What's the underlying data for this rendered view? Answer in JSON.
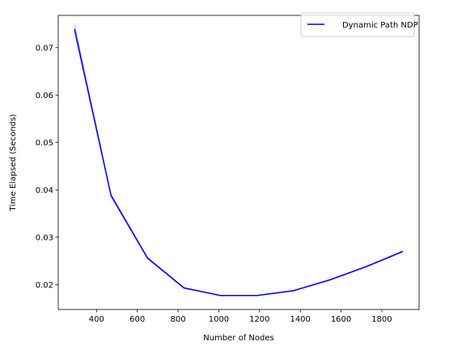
{
  "chart_data": {
    "type": "line",
    "title": "",
    "xlabel": "Number of Nodes",
    "ylabel": "Time Elapsed (Seconds)",
    "xlim": [
      212,
      1983
    ],
    "ylim": [
      0.01475,
      0.0768
    ],
    "xticks": [
      400,
      600,
      800,
      1000,
      1200,
      1400,
      1600,
      1800
    ],
    "yticks": [
      0.02,
      0.03,
      0.04,
      0.05,
      0.06,
      0.07
    ],
    "xtick_labels": [
      "400",
      "600",
      "800",
      "1000",
      "1200",
      "1400",
      "1600",
      "1800"
    ],
    "ytick_labels": [
      "0.02",
      "0.03",
      "0.04",
      "0.05",
      "0.06",
      "0.07"
    ],
    "grid": false,
    "legend_position": "top-right",
    "series": [
      {
        "name": "Dynamic Path NDP",
        "color": "#0000ff",
        "band_color": "#9999ff",
        "x": [
          292,
          471,
          650,
          829,
          1008,
          1187,
          1366,
          1545,
          1724,
          1903
        ],
        "y": [
          0.0739,
          0.0388,
          0.0256,
          0.0193,
          0.0177,
          0.0177,
          0.0187,
          0.021,
          0.0238,
          0.027
        ],
        "y_lower": [
          0.0727,
          0.0383,
          0.0253,
          0.0191,
          0.0176,
          0.0176,
          0.0186,
          0.0208,
          0.0236,
          0.0267
        ],
        "y_upper": [
          0.0756,
          0.0394,
          0.026,
          0.0195,
          0.0178,
          0.0178,
          0.0189,
          0.0212,
          0.024,
          0.0272
        ]
      }
    ]
  }
}
